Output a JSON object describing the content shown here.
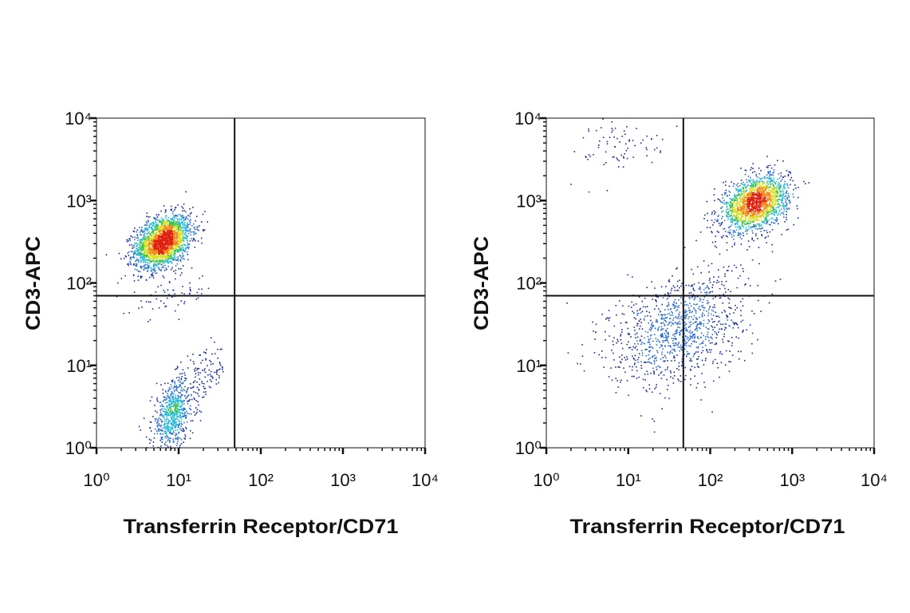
{
  "chart_data": [
    {
      "type": "scatter",
      "subtype": "flow-cytometry-density-dot-plot",
      "xlabel": "Transferrin Receptor/CD71",
      "ylabel": "CD3-APC",
      "xscale": "log",
      "yscale": "log",
      "xlim": [
        1,
        10000
      ],
      "ylim": [
        1,
        10000
      ],
      "xticks": [
        1,
        10,
        100,
        1000,
        10000
      ],
      "yticks": [
        1,
        10,
        100,
        1000,
        10000
      ],
      "xtick_labels": [
        "10⁰",
        "10¹",
        "10²",
        "10³",
        "10⁴"
      ],
      "ytick_labels": [
        "10⁰",
        "10¹",
        "10²",
        "10³",
        "10⁴"
      ],
      "grid": false,
      "quadrant_gate": {
        "x": 48,
        "y": 70
      },
      "populations": [
        {
          "center": [
            6.3,
            320
          ],
          "log_spread": [
            0.17,
            0.16
          ],
          "events": 2200
        },
        {
          "center": [
            8.5,
            2.6
          ],
          "log_spread": [
            0.13,
            0.22
          ],
          "events": 700
        },
        {
          "center": [
            22,
            8
          ],
          "log_spread": [
            0.12,
            0.15
          ],
          "events": 90
        },
        {
          "center": [
            8,
            70
          ],
          "log_spread": [
            0.25,
            0.12
          ],
          "events": 60
        }
      ]
    },
    {
      "type": "scatter",
      "subtype": "flow-cytometry-density-dot-plot",
      "xlabel": "Transferrin Receptor/CD71",
      "ylabel": "CD3-APC",
      "xscale": "log",
      "yscale": "log",
      "xlim": [
        1,
        10000
      ],
      "ylim": [
        1,
        10000
      ],
      "xticks": [
        1,
        10,
        100,
        1000,
        10000
      ],
      "yticks": [
        1,
        10,
        100,
        1000,
        10000
      ],
      "xtick_labels": [
        "10⁰",
        "10¹",
        "10²",
        "10³",
        "10⁴"
      ],
      "ytick_labels": [
        "10⁰",
        "10¹",
        "10²",
        "10³",
        "10⁴"
      ],
      "grid": false,
      "quadrant_gate": {
        "x": 47,
        "y": 70
      },
      "populations": [
        {
          "center": [
            350,
            940
          ],
          "log_spread": [
            0.2,
            0.17
          ],
          "events": 1800
        },
        {
          "center": [
            40,
            28
          ],
          "log_spread": [
            0.42,
            0.35
          ],
          "events": 1100
        },
        {
          "center": [
            9,
            5000
          ],
          "log_spread": [
            0.3,
            0.2
          ],
          "events": 80
        }
      ]
    }
  ],
  "colors": {
    "density_scale": [
      "#1a2a9c",
      "#2b6fd0",
      "#22b8d8",
      "#3cc24a",
      "#d8e020",
      "#f08a18",
      "#e02010"
    ],
    "axis": "#111111",
    "gate": "#111111"
  }
}
